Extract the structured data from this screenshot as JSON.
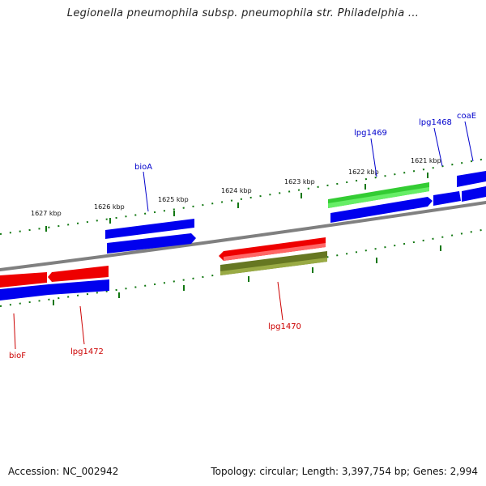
{
  "title": "Legionella pneumophila subsp. pneumophila str. Philadelphia ...",
  "footer": {
    "accession": "Accession: NC_002942",
    "stats": "Topology: circular; Length: 3,397,754 bp; Genes: 2,994"
  },
  "colors": {
    "forward_strand": "#0000ee",
    "reverse_strand": "#ee0000",
    "highlight_forward": "#33cc33",
    "highlight_reverse": "#667722",
    "backbone": "#808080",
    "ticks": "#117711",
    "forward_label": "#0000cc",
    "reverse_label": "#cc0000"
  },
  "scale_ticks": [
    "1627 kbp",
    "1626 kbp",
    "1625 kbp",
    "1624 kbp",
    "1623 kbp",
    "1622 kbp",
    "1621 kbp"
  ],
  "gene_labels": {
    "forward": [
      "bioA",
      "lpg1469",
      "lpg1468",
      "coaE"
    ],
    "reverse": [
      "bioF",
      "lpg1472",
      "lpg1470"
    ]
  }
}
